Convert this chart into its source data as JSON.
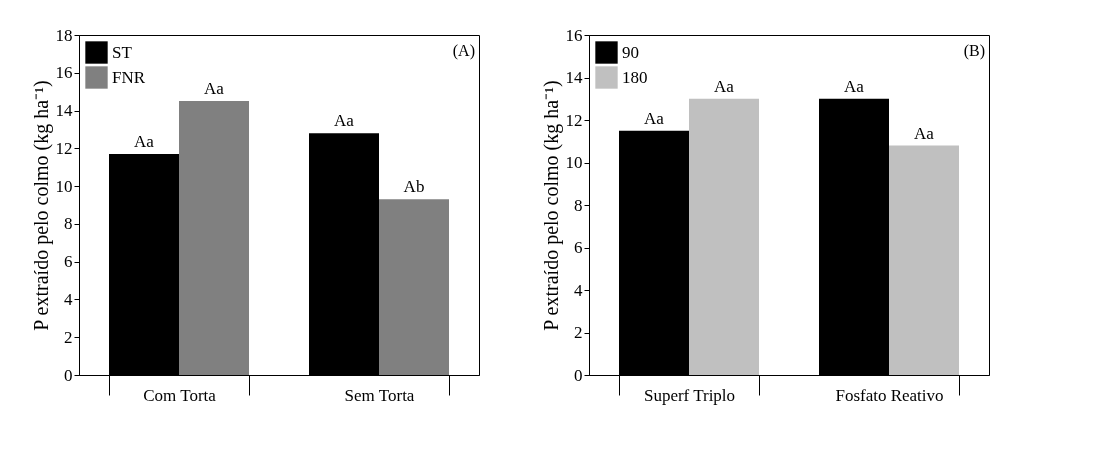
{
  "chart_data": [
    {
      "type": "bar",
      "annotations": [
        "(A)"
      ],
      "ylabel": "P extraído pelo colmo (kg ha⁻¹)",
      "categories": [
        "Com Torta",
        "Sem Torta"
      ],
      "series": [
        {
          "name": "ST",
          "color": "#000000",
          "values": [
            11.7,
            12.8
          ],
          "value_labels": [
            "Aa",
            "Aa"
          ]
        },
        {
          "name": "FNR",
          "color": "#808080",
          "values": [
            14.5,
            9.3
          ],
          "value_labels": [
            "Aa",
            "Ab"
          ]
        }
      ],
      "ylim": [
        0,
        18
      ],
      "yticks": [
        0,
        2,
        4,
        6,
        8,
        10,
        12,
        14,
        16,
        18
      ],
      "grid": false,
      "legend": "top left"
    },
    {
      "type": "bar",
      "annotations": [
        "(B)"
      ],
      "ylabel": "P extraído pelo colmo (kg ha⁻¹)",
      "categories": [
        "Superf Triplo",
        "Fosfato Reativo"
      ],
      "series": [
        {
          "name": "90",
          "color": "#000000",
          "values": [
            11.5,
            13.0
          ],
          "value_labels": [
            "Aa",
            "Aa"
          ]
        },
        {
          "name": "180",
          "color": "#c0c0c0",
          "values": [
            13.0,
            10.8
          ],
          "value_labels": [
            "Aa",
            "Aa"
          ]
        }
      ],
      "ylim": [
        0,
        16
      ],
      "yticks": [
        0,
        2,
        4,
        6,
        8,
        10,
        12,
        14,
        16
      ],
      "grid": false,
      "legend": "top left"
    }
  ]
}
